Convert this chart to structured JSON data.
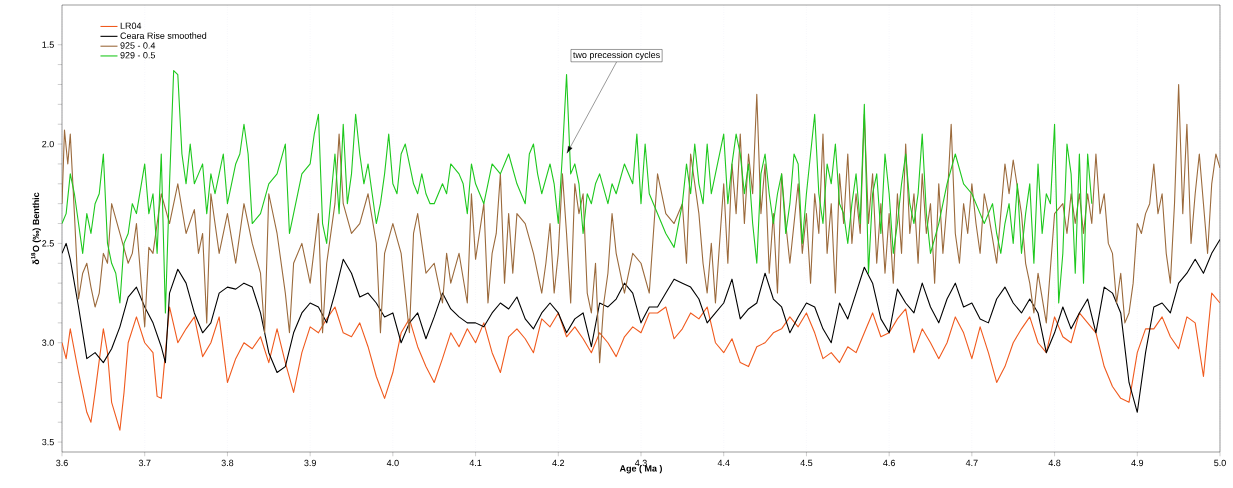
{
  "chart_data": {
    "type": "line",
    "xlabel": "Age ( Ma )",
    "ylabel": "δ$^{18}$O (‰) Benthic",
    "xlim": [
      3.6,
      5.0
    ],
    "ylim": [
      3.55,
      1.3
    ],
    "xticks": [
      3.6,
      3.7,
      3.8,
      3.9,
      {
        "value": 4.0,
        "label": "4.0"
      },
      4.1,
      4.2,
      4.3,
      4.4,
      4.5,
      4.6,
      4.7,
      4.8,
      4.9,
      {
        "value": 5.0,
        "label": "5.0"
      }
    ],
    "yticks": [
      1.5,
      {
        "value": 1.6,
        "label": null
      },
      {
        "value": 1.7,
        "label": null
      },
      {
        "value": 1.8,
        "label": null
      },
      {
        "value": 1.9,
        "label": null
      },
      {
        "value": 2.0,
        "label": "2.0"
      },
      {
        "value": 2.1,
        "label": null
      },
      {
        "value": 2.2,
        "label": null
      },
      {
        "value": 2.3,
        "label": null
      },
      {
        "value": 2.4,
        "label": null
      },
      2.5,
      {
        "value": 2.6,
        "label": null
      },
      {
        "value": 2.7,
        "label": null
      },
      {
        "value": 2.8,
        "label": null
      },
      {
        "value": 2.9,
        "label": null
      },
      {
        "value": 3.0,
        "label": "3.0"
      },
      {
        "value": 3.1,
        "label": null
      },
      {
        "value": 3.2,
        "label": null
      },
      {
        "value": 3.3,
        "label": null
      },
      {
        "value": 3.4,
        "label": null
      },
      3.5
    ],
    "grid": "x",
    "legend": "top left",
    "marker": "none",
    "line_style": "solid",
    "annotations": [
      {
        "text": "two precession cycles",
        "x": 4.21,
        "y": 2.05
      }
    ],
    "series": [
      {
        "name": "LR04",
        "color": "#f05a1e",
        "x": [
          3.6,
          3.605,
          3.61,
          3.62,
          3.63,
          3.635,
          3.64,
          3.65,
          3.655,
          3.66,
          3.67,
          3.675,
          3.68,
          3.69,
          3.7,
          3.71,
          3.715,
          3.72,
          3.73,
          3.74,
          3.75,
          3.76,
          3.77,
          3.78,
          3.79,
          3.8,
          3.81,
          3.82,
          3.83,
          3.84,
          3.85,
          3.86,
          3.87,
          3.88,
          3.89,
          3.9,
          3.91,
          3.92,
          3.93,
          3.94,
          3.95,
          3.96,
          3.97,
          3.98,
          3.99,
          4.0,
          4.01,
          4.02,
          4.03,
          4.04,
          4.05,
          4.06,
          4.07,
          4.08,
          4.09,
          4.1,
          4.11,
          4.12,
          4.13,
          4.14,
          4.15,
          4.16,
          4.17,
          4.18,
          4.19,
          4.2,
          4.21,
          4.22,
          4.23,
          4.24,
          4.25,
          4.26,
          4.27,
          4.28,
          4.29,
          4.3,
          4.31,
          4.32,
          4.33,
          4.34,
          4.35,
          4.36,
          4.37,
          4.38,
          4.39,
          4.4,
          4.41,
          4.42,
          4.43,
          4.44,
          4.45,
          4.46,
          4.47,
          4.48,
          4.49,
          4.5,
          4.51,
          4.52,
          4.53,
          4.54,
          4.55,
          4.56,
          4.57,
          4.58,
          4.59,
          4.6,
          4.61,
          4.62,
          4.63,
          4.64,
          4.65,
          4.66,
          4.67,
          4.68,
          4.69,
          4.7,
          4.71,
          4.72,
          4.73,
          4.74,
          4.75,
          4.76,
          4.77,
          4.78,
          4.79,
          4.8,
          4.81,
          4.82,
          4.83,
          4.84,
          4.85,
          4.86,
          4.87,
          4.88,
          4.89,
          4.9,
          4.91,
          4.92,
          4.93,
          4.94,
          4.95,
          4.96,
          4.97,
          4.98,
          4.99,
          5.0
        ],
        "values": [
          3.0,
          3.08,
          2.93,
          3.15,
          3.35,
          3.4,
          3.25,
          2.93,
          3.05,
          3.3,
          3.44,
          3.25,
          3.0,
          2.87,
          3.0,
          3.05,
          3.27,
          3.28,
          2.82,
          3.0,
          2.93,
          2.87,
          3.07,
          3.0,
          2.87,
          3.2,
          3.08,
          3.0,
          3.03,
          2.97,
          3.1,
          2.93,
          3.1,
          3.25,
          3.05,
          2.92,
          2.95,
          2.88,
          2.82,
          2.95,
          2.97,
          2.9,
          3.02,
          3.17,
          3.28,
          3.15,
          2.95,
          2.88,
          3.02,
          3.12,
          3.2,
          3.08,
          2.95,
          3.02,
          2.93,
          3.0,
          2.9,
          3.05,
          3.15,
          2.97,
          2.93,
          2.98,
          3.05,
          2.88,
          2.92,
          2.85,
          2.97,
          2.92,
          2.98,
          3.05,
          2.95,
          3.0,
          3.07,
          2.97,
          2.92,
          2.95,
          2.85,
          2.85,
          2.82,
          2.98,
          2.93,
          2.85,
          2.88,
          2.82,
          3.0,
          3.05,
          2.98,
          3.1,
          3.12,
          3.02,
          3.0,
          2.95,
          2.93,
          2.87,
          2.92,
          2.85,
          2.95,
          3.08,
          3.05,
          3.1,
          3.02,
          3.05,
          2.95,
          2.85,
          2.97,
          2.95,
          2.88,
          2.83,
          3.05,
          2.93,
          3.0,
          3.08,
          3.0,
          2.87,
          2.95,
          3.08,
          2.92,
          3.05,
          3.2,
          3.12,
          3.0,
          2.93,
          2.87,
          3.0,
          3.05,
          2.87,
          2.97,
          3.0,
          2.85,
          2.9,
          2.95,
          3.12,
          3.22,
          3.28,
          3.3,
          3.05,
          2.93,
          2.93,
          2.87,
          2.97,
          3.03,
          2.87,
          2.9,
          3.17,
          2.75,
          2.8
        ]
      },
      {
        "name": "Ceara Rise smoothed",
        "color": "#000000",
        "x": [
          3.6,
          3.605,
          3.61,
          3.62,
          3.63,
          3.64,
          3.65,
          3.66,
          3.67,
          3.68,
          3.69,
          3.7,
          3.71,
          3.72,
          3.725,
          3.73,
          3.74,
          3.75,
          3.76,
          3.77,
          3.78,
          3.79,
          3.8,
          3.81,
          3.82,
          3.83,
          3.84,
          3.85,
          3.86,
          3.87,
          3.88,
          3.89,
          3.9,
          3.91,
          3.92,
          3.93,
          3.94,
          3.95,
          3.96,
          3.97,
          3.98,
          3.99,
          4.0,
          4.01,
          4.02,
          4.03,
          4.04,
          4.05,
          4.06,
          4.07,
          4.08,
          4.09,
          4.1,
          4.11,
          4.12,
          4.13,
          4.14,
          4.15,
          4.16,
          4.17,
          4.18,
          4.19,
          4.2,
          4.21,
          4.22,
          4.23,
          4.24,
          4.25,
          4.26,
          4.27,
          4.28,
          4.29,
          4.3,
          4.31,
          4.32,
          4.33,
          4.34,
          4.35,
          4.36,
          4.37,
          4.38,
          4.39,
          4.4,
          4.41,
          4.42,
          4.43,
          4.44,
          4.45,
          4.46,
          4.47,
          4.48,
          4.49,
          4.5,
          4.51,
          4.52,
          4.53,
          4.54,
          4.55,
          4.56,
          4.57,
          4.58,
          4.59,
          4.6,
          4.61,
          4.62,
          4.63,
          4.64,
          4.65,
          4.66,
          4.67,
          4.68,
          4.69,
          4.7,
          4.71,
          4.72,
          4.73,
          4.74,
          4.75,
          4.76,
          4.77,
          4.78,
          4.79,
          4.8,
          4.81,
          4.82,
          4.83,
          4.84,
          4.85,
          4.86,
          4.87,
          4.88,
          4.89,
          4.9,
          4.91,
          4.92,
          4.93,
          4.94,
          4.95,
          4.96,
          4.97,
          4.98,
          4.99,
          5.0
        ],
        "values": [
          2.55,
          2.5,
          2.58,
          2.82,
          3.08,
          3.05,
          3.1,
          3.03,
          2.92,
          2.77,
          2.72,
          2.82,
          2.9,
          3.02,
          3.1,
          2.75,
          2.63,
          2.7,
          2.85,
          2.95,
          2.9,
          2.75,
          2.72,
          2.73,
          2.7,
          2.72,
          2.85,
          3.05,
          3.15,
          3.12,
          2.95,
          2.85,
          2.8,
          2.82,
          2.9,
          2.75,
          2.58,
          2.65,
          2.77,
          2.75,
          2.8,
          2.87,
          2.85,
          3.0,
          2.9,
          2.85,
          2.98,
          2.87,
          2.75,
          2.83,
          2.87,
          2.9,
          2.9,
          2.92,
          2.85,
          2.8,
          2.83,
          2.77,
          2.88,
          2.93,
          2.85,
          2.8,
          2.85,
          2.95,
          2.88,
          2.85,
          3.02,
          2.8,
          2.82,
          2.78,
          2.7,
          2.75,
          2.9,
          2.82,
          2.82,
          2.75,
          2.68,
          2.7,
          2.72,
          2.78,
          2.9,
          2.85,
          2.8,
          2.68,
          2.88,
          2.83,
          2.8,
          2.65,
          2.78,
          2.82,
          2.95,
          2.87,
          2.8,
          2.82,
          2.93,
          3.0,
          2.8,
          2.88,
          2.75,
          2.62,
          2.7,
          2.88,
          2.95,
          2.73,
          2.8,
          2.85,
          2.7,
          2.82,
          2.9,
          2.78,
          2.7,
          2.82,
          2.8,
          2.88,
          2.9,
          2.78,
          2.72,
          2.8,
          2.85,
          2.78,
          2.85,
          3.05,
          2.95,
          2.82,
          2.93,
          2.85,
          2.78,
          2.95,
          2.72,
          2.75,
          2.85,
          3.2,
          3.35,
          3.05,
          2.82,
          2.8,
          2.85,
          2.7,
          2.65,
          2.58,
          2.65,
          2.55,
          2.48
        ]
      },
      {
        "name": "925 - 0.4",
        "color": "#9b6a3c",
        "x": [
          3.6,
          3.603,
          3.607,
          3.61,
          3.615,
          3.62,
          3.625,
          3.63,
          3.635,
          3.64,
          3.645,
          3.65,
          3.655,
          3.66,
          3.67,
          3.68,
          3.685,
          3.69,
          3.7,
          3.705,
          3.71,
          3.72,
          3.73,
          3.74,
          3.75,
          3.76,
          3.765,
          3.77,
          3.775,
          3.78,
          3.79,
          3.8,
          3.81,
          3.82,
          3.83,
          3.84,
          3.845,
          3.85,
          3.86,
          3.87,
          3.875,
          3.88,
          3.89,
          3.9,
          3.91,
          3.915,
          3.92,
          3.93,
          3.935,
          3.94,
          3.95,
          3.96,
          3.97,
          3.98,
          3.985,
          3.99,
          4.0,
          4.01,
          4.02,
          4.025,
          4.03,
          4.04,
          4.05,
          4.06,
          4.065,
          4.07,
          4.08,
          4.09,
          4.095,
          4.1,
          4.11,
          4.115,
          4.12,
          4.125,
          4.13,
          4.135,
          4.14,
          4.145,
          4.15,
          4.16,
          4.17,
          4.18,
          4.185,
          4.19,
          4.195,
          4.2,
          4.205,
          4.21,
          4.215,
          4.22,
          4.225,
          4.23,
          4.235,
          4.24,
          4.245,
          4.25,
          4.255,
          4.26,
          4.265,
          4.27,
          4.275,
          4.28,
          4.29,
          4.3,
          4.31,
          4.32,
          4.33,
          4.34,
          4.35,
          4.355,
          4.36,
          4.37,
          4.375,
          4.38,
          4.385,
          4.39,
          4.4,
          4.405,
          4.41,
          4.415,
          4.42,
          4.425,
          4.43,
          4.435,
          4.44,
          4.445,
          4.45,
          4.455,
          4.46,
          4.465,
          4.47,
          4.475,
          4.48,
          4.49,
          4.495,
          4.5,
          4.505,
          4.51,
          4.515,
          4.52,
          4.525,
          4.53,
          4.535,
          4.54,
          4.545,
          4.55,
          4.555,
          4.56,
          4.565,
          4.57,
          4.575,
          4.58,
          4.585,
          4.59,
          4.595,
          4.6,
          4.605,
          4.61,
          4.615,
          4.62,
          4.625,
          4.63,
          4.635,
          4.64,
          4.645,
          4.65,
          4.655,
          4.66,
          4.665,
          4.67,
          4.675,
          4.68,
          4.685,
          4.69,
          4.695,
          4.7,
          4.705,
          4.71,
          4.715,
          4.72,
          4.73,
          4.735,
          4.74,
          4.745,
          4.75,
          4.76,
          4.765,
          4.77,
          4.775,
          4.78,
          4.79,
          4.8,
          4.81,
          4.815,
          4.82,
          4.825,
          4.83,
          4.835,
          4.84,
          4.845,
          4.85,
          4.855,
          4.86,
          4.865,
          4.87,
          4.875,
          4.88,
          4.885,
          4.89,
          4.895,
          4.9,
          4.905,
          4.91,
          4.915,
          4.92,
          4.925,
          4.93,
          4.935,
          4.94,
          4.945,
          4.95,
          4.955,
          4.96,
          4.965,
          4.97,
          4.975,
          4.98,
          4.985,
          4.99,
          4.995,
          5.0
        ],
        "values": [
          2.3,
          1.93,
          2.1,
          1.95,
          2.35,
          2.78,
          2.65,
          2.6,
          2.72,
          2.82,
          2.75,
          2.55,
          2.6,
          2.3,
          2.45,
          2.6,
          2.55,
          2.4,
          2.92,
          2.52,
          2.55,
          2.25,
          2.4,
          2.2,
          2.45,
          2.33,
          2.55,
          2.45,
          2.9,
          2.25,
          2.55,
          2.35,
          2.6,
          2.3,
          2.5,
          2.65,
          2.95,
          2.25,
          2.45,
          2.75,
          2.95,
          2.6,
          2.5,
          2.7,
          2.35,
          2.95,
          2.6,
          2.3,
          1.95,
          2.3,
          2.45,
          2.4,
          2.25,
          2.5,
          2.95,
          2.55,
          2.4,
          2.55,
          2.95,
          2.45,
          2.35,
          2.65,
          2.6,
          2.8,
          2.55,
          2.7,
          2.55,
          2.8,
          2.25,
          2.58,
          2.3,
          2.8,
          2.55,
          2.45,
          2.15,
          2.7,
          2.35,
          2.65,
          2.35,
          2.4,
          2.55,
          2.75,
          2.6,
          2.4,
          2.75,
          2.55,
          2.15,
          2.45,
          2.8,
          2.2,
          2.35,
          2.25,
          2.75,
          2.85,
          2.6,
          3.1,
          2.8,
          2.65,
          2.35,
          2.55,
          2.65,
          2.75,
          2.55,
          2.6,
          2.75,
          2.15,
          2.35,
          2.4,
          2.3,
          2.6,
          2.05,
          2.35,
          2.6,
          2.75,
          2.5,
          2.8,
          2.2,
          2.6,
          2.1,
          2.35,
          1.95,
          2.4,
          2.05,
          2.25,
          1.75,
          2.35,
          2.1,
          2.65,
          2.35,
          2.75,
          2.15,
          2.4,
          2.6,
          2.2,
          2.55,
          2.35,
          2.7,
          2.25,
          2.45,
          1.95,
          2.55,
          2.3,
          2.75,
          2.15,
          2.4,
          2.05,
          2.5,
          2.25,
          2.45,
          1.85,
          2.4,
          2.15,
          2.6,
          2.3,
          2.65,
          2.35,
          2.7,
          2.25,
          2.55,
          2.0,
          2.45,
          2.25,
          2.6,
          2.15,
          2.45,
          2.3,
          2.7,
          2.2,
          2.55,
          2.3,
          1.9,
          2.45,
          2.6,
          2.3,
          2.45,
          2.2,
          2.4,
          2.55,
          2.25,
          2.35,
          2.6,
          2.35,
          2.1,
          2.25,
          2.08,
          2.35,
          2.6,
          2.7,
          2.85,
          2.65,
          2.9,
          2.35,
          2.3,
          2.45,
          2.25,
          2.4,
          2.25,
          2.45,
          2.25,
          2.4,
          2.05,
          2.35,
          2.25,
          2.5,
          2.55,
          2.8,
          2.65,
          2.9,
          2.85,
          2.7,
          2.4,
          2.45,
          2.35,
          2.3,
          2.1,
          2.35,
          2.25,
          2.55,
          2.7,
          2.3,
          1.7,
          2.35,
          1.9,
          2.5,
          2.25,
          2.05,
          2.3,
          2.55,
          2.2,
          2.05,
          2.12
        ]
      },
      {
        "name": "929 - 0.5",
        "color": "#1ec81e",
        "x": [
          3.6,
          3.605,
          3.61,
          3.615,
          3.62,
          3.625,
          3.63,
          3.635,
          3.64,
          3.645,
          3.65,
          3.655,
          3.66,
          3.665,
          3.67,
          3.675,
          3.68,
          3.685,
          3.69,
          3.7,
          3.705,
          3.71,
          3.715,
          3.72,
          3.725,
          3.73,
          3.735,
          3.74,
          3.745,
          3.75,
          3.755,
          3.76,
          3.765,
          3.77,
          3.775,
          3.78,
          3.785,
          3.79,
          3.795,
          3.8,
          3.805,
          3.81,
          3.815,
          3.82,
          3.825,
          3.83,
          3.84,
          3.85,
          3.86,
          3.87,
          3.875,
          3.88,
          3.89,
          3.9,
          3.905,
          3.91,
          3.915,
          3.92,
          3.93,
          3.935,
          3.94,
          3.945,
          3.95,
          3.955,
          3.96,
          3.965,
          3.97,
          3.975,
          3.98,
          3.985,
          3.99,
          3.995,
          4.0,
          4.005,
          4.01,
          4.015,
          4.02,
          4.025,
          4.03,
          4.035,
          4.04,
          4.045,
          4.05,
          4.06,
          4.065,
          4.07,
          4.08,
          4.085,
          4.09,
          4.095,
          4.1,
          4.105,
          4.11,
          4.12,
          4.13,
          4.14,
          4.15,
          4.16,
          4.165,
          4.17,
          4.175,
          4.18,
          4.19,
          4.195,
          4.2,
          4.205,
          4.21,
          4.215,
          4.22,
          4.225,
          4.23,
          4.235,
          4.24,
          4.245,
          4.25,
          4.26,
          4.265,
          4.27,
          4.28,
          4.29,
          4.295,
          4.3,
          4.305,
          4.31,
          4.33,
          4.34,
          4.35,
          4.355,
          4.36,
          4.365,
          4.37,
          4.375,
          4.38,
          4.385,
          4.39,
          4.4,
          4.405,
          4.41,
          4.415,
          4.42,
          4.425,
          4.43,
          4.435,
          4.44,
          4.445,
          4.45,
          4.455,
          4.46,
          4.465,
          4.47,
          4.475,
          4.48,
          4.485,
          4.49,
          4.495,
          4.5,
          4.505,
          4.51,
          4.515,
          4.52,
          4.525,
          4.53,
          4.535,
          4.54,
          4.545,
          4.55,
          4.555,
          4.56,
          4.565,
          4.57,
          4.575,
          4.58,
          4.585,
          4.59,
          4.595,
          4.6,
          4.605,
          4.61,
          4.615,
          4.62,
          4.625,
          4.63,
          4.635,
          4.64,
          4.645,
          4.65,
          4.66,
          4.67,
          4.68,
          4.69,
          4.7,
          4.71,
          4.715,
          4.72,
          4.725,
          4.73,
          4.735,
          4.74,
          4.745,
          4.75,
          4.755,
          4.76,
          4.765,
          4.77,
          4.775,
          4.78,
          4.785,
          4.79,
          4.795,
          4.8,
          4.805,
          4.81,
          4.815,
          4.82,
          4.825,
          4.83,
          4.835,
          4.84,
          4.845
        ],
        "values": [
          2.4,
          2.35,
          2.15,
          2.25,
          2.4,
          2.55,
          2.35,
          2.45,
          2.3,
          2.25,
          2.05,
          2.5,
          2.6,
          2.65,
          2.8,
          2.5,
          2.45,
          2.3,
          2.35,
          2.1,
          2.35,
          2.25,
          2.55,
          2.05,
          2.85,
          2.2,
          1.63,
          1.65,
          2.05,
          2.2,
          2.0,
          2.2,
          2.15,
          2.1,
          2.35,
          2.15,
          2.25,
          2.15,
          2.05,
          2.3,
          2.2,
          2.1,
          2.05,
          1.9,
          2.05,
          2.4,
          2.35,
          2.2,
          2.15,
          2.0,
          2.45,
          2.35,
          2.15,
          2.1,
          1.95,
          1.85,
          2.4,
          2.5,
          2.05,
          2.35,
          1.9,
          2.3,
          2.15,
          1.85,
          2.05,
          2.2,
          2.1,
          2.25,
          2.4,
          2.3,
          2.15,
          1.95,
          2.2,
          2.25,
          2.05,
          2.0,
          2.1,
          2.2,
          2.25,
          2.15,
          2.25,
          2.3,
          2.3,
          2.2,
          2.25,
          2.1,
          2.15,
          2.2,
          2.35,
          2.1,
          2.2,
          2.25,
          2.3,
          2.1,
          2.15,
          2.05,
          2.2,
          2.3,
          2.05,
          2.0,
          2.15,
          2.25,
          2.1,
          2.2,
          2.4,
          2.05,
          1.65,
          2.15,
          2.1,
          2.2,
          2.45,
          2.25,
          2.3,
          2.2,
          2.15,
          2.3,
          2.2,
          2.25,
          2.1,
          2.2,
          1.95,
          2.3,
          2.0,
          2.25,
          2.45,
          2.52,
          2.3,
          2.1,
          2.25,
          2.0,
          2.2,
          2.3,
          2.0,
          2.25,
          2.15,
          1.95,
          2.3,
          2.1,
          1.95,
          2.05,
          2.25,
          2.1,
          2.4,
          2.6,
          2.15,
          2.05,
          2.25,
          2.4,
          2.25,
          2.15,
          2.45,
          2.3,
          2.05,
          2.1,
          2.5,
          2.25,
          2.05,
          1.85,
          2.25,
          2.4,
          2.1,
          2.2,
          2.0,
          2.3,
          2.35,
          2.5,
          2.3,
          2.15,
          2.4,
          1.8,
          2.65,
          2.25,
          2.15,
          2.45,
          2.05,
          2.25,
          2.55,
          2.4,
          2.2,
          2.05,
          2.3,
          2.4,
          2.25,
          1.95,
          2.35,
          2.55,
          2.4,
          2.2,
          2.05,
          2.2,
          2.25,
          2.35,
          2.4,
          2.35,
          2.3,
          2.45,
          2.55,
          2.4,
          2.3,
          2.5,
          2.2,
          2.55,
          2.35,
          2.2,
          2.6,
          2.1,
          2.45,
          2.25,
          2.3,
          1.9,
          2.8,
          2.55,
          2.0,
          2.15,
          2.65,
          2.05,
          2.7,
          2.05,
          2.3
        ]
      }
    ]
  }
}
